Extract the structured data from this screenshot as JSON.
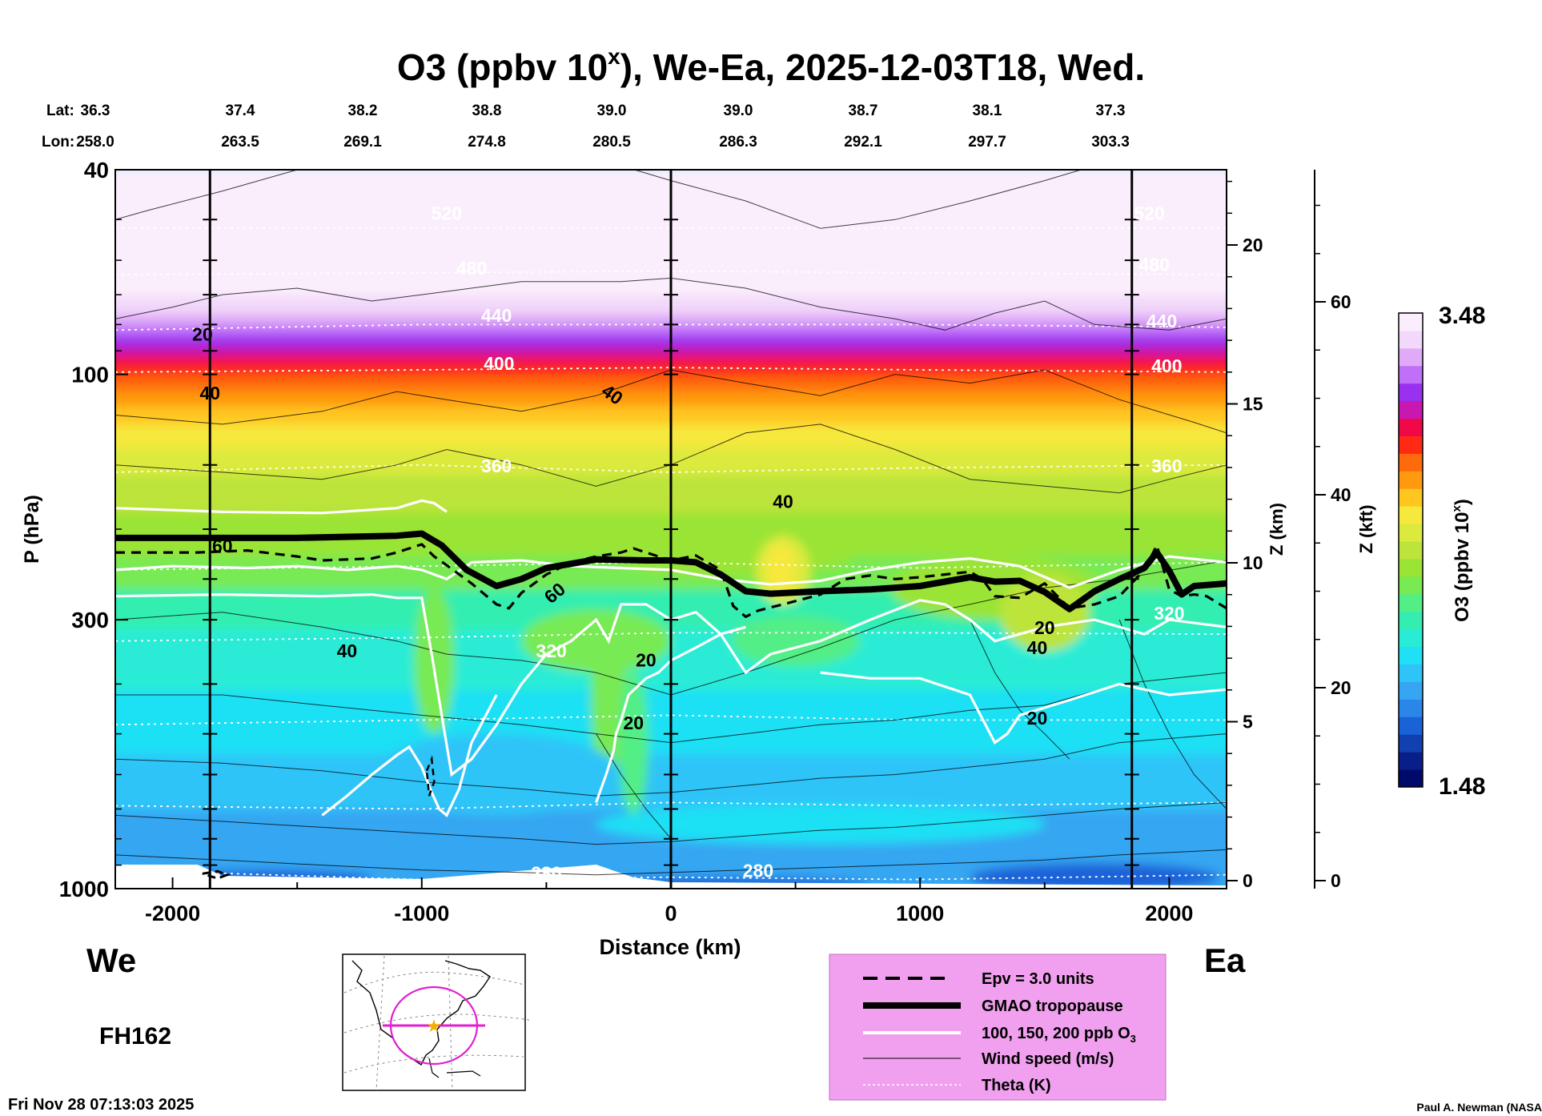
{
  "chart_data": {
    "type": "heatmap",
    "title_prefix": "O3 (ppbv 10",
    "title_sup": "x",
    "title_suffix": "), We-Ea, 2025-12-03T18, Wed.",
    "lat_label": "Lat:",
    "lon_label": "Lon:",
    "lat_values": [
      "36.3",
      "37.4",
      "38.2",
      "38.8",
      "39.0",
      "39.0",
      "38.7",
      "38.1",
      "37.3"
    ],
    "lon_values": [
      "258.0",
      "263.5",
      "269.1",
      "274.8",
      "280.5",
      "286.3",
      "292.1",
      "297.7",
      "303.3"
    ],
    "xlabel": "Distance (km)",
    "ylabel": "P (hPa)",
    "xlim": [
      -2230,
      2230
    ],
    "ylim": [
      1000,
      40
    ],
    "x_ticks": [
      -2000,
      -1000,
      0,
      1000,
      2000
    ],
    "x_tick_labels": [
      "-2000",
      "-1000",
      "0",
      "1000",
      "2000"
    ],
    "y_ticks": [
      40,
      100,
      300,
      1000
    ],
    "y_tick_labels": [
      "40",
      "100",
      "300",
      "1000"
    ],
    "z_km_label": "Z (km)",
    "z_km_ticks": [
      0,
      5,
      10,
      15,
      20
    ],
    "z_km_tick_labels": [
      "0",
      "5",
      "10",
      "15",
      "20"
    ],
    "z_kft_label": "Z (kft)",
    "z_kft_ticks": [
      0,
      20,
      40,
      60
    ],
    "z_kft_tick_labels": [
      "0",
      "20",
      "40",
      "60"
    ],
    "vertical_markers_km": [
      -1850,
      0,
      1850
    ],
    "colorbar_label_prefix": "O3 (ppbv 10",
    "colorbar_label_sup": "x",
    "colorbar_label_suffix": ")",
    "colorbar_max": "3.48",
    "colorbar_min": "1.48",
    "colors": [
      "#000a6a",
      "#0a1e8a",
      "#1140b0",
      "#1a62d8",
      "#2b86ea",
      "#36a6f2",
      "#2ec4f8",
      "#1fe0f4",
      "#29ecd6",
      "#33eeb0",
      "#52ee86",
      "#78ea52",
      "#9ae436",
      "#bce43a",
      "#dcea3e",
      "#f6e83c",
      "#ffc620",
      "#ff9a10",
      "#ff6a0c",
      "#ff2a14",
      "#f00848",
      "#c818b0",
      "#9a30f0",
      "#c070f8",
      "#e0aaf8",
      "#f2d8fa",
      "#fbeefc"
    ],
    "contour_labels_ozone": [
      "20",
      "40",
      "60",
      "40",
      "60",
      "40",
      "20",
      "40",
      "20",
      "40",
      "20",
      "20"
    ],
    "contour_labels_theta": [
      "520",
      "480",
      "440",
      "400",
      "360",
      "320",
      "280",
      "280",
      "520",
      "480",
      "440",
      "400",
      "360",
      "320"
    ],
    "tropopause": {
      "x": [
        -2230,
        -1500,
        -1100,
        -1000,
        -920,
        -820,
        -700,
        -600,
        -500,
        -300,
        -100,
        0,
        100,
        200,
        300,
        400,
        600,
        800,
        1000,
        1200,
        1300,
        1400,
        1500,
        1600,
        1700,
        1800,
        1900,
        1950,
        2000,
        2050,
        2100,
        2230
      ],
      "p": [
        208,
        208,
        206,
        204,
        215,
        240,
        258,
        250,
        238,
        229,
        230,
        230,
        232,
        245,
        264,
        267,
        264,
        262,
        258,
        248,
        253,
        252,
        265,
        286,
        264,
        250,
        238,
        222,
        241,
        268,
        258,
        255
      ]
    },
    "epv": {
      "x": [
        -2230,
        -1900,
        -1700,
        -1500,
        -1400,
        -1200,
        -1100,
        -1000,
        -950,
        -900,
        -800,
        -700,
        -650,
        -600,
        -500,
        -400,
        -300,
        -200,
        -150,
        -100,
        0,
        100,
        200,
        250,
        300,
        350,
        450,
        600,
        700,
        800,
        900,
        1000,
        1100,
        1200,
        1250,
        1300,
        1400,
        1500,
        1600,
        1700,
        1800,
        1900,
        1950,
        2000,
        2050,
        2100,
        2150,
        2230
      ],
      "p": [
        222,
        222,
        220,
        226,
        230,
        228,
        222,
        214,
        226,
        235,
        255,
        280,
        285,
        266,
        245,
        232,
        226,
        222,
        218,
        222,
        230,
        225,
        240,
        282,
        296,
        288,
        280,
        268,
        250,
        246,
        250,
        248,
        245,
        242,
        250,
        270,
        272,
        255,
        285,
        280,
        270,
        240,
        215,
        262,
        270,
        268,
        270,
        285
      ]
    },
    "legend": {
      "epv": "Epv = 3.0 units",
      "tropopause": "GMAO tropopause",
      "ozone_contours": "100, 150, 200 ppb O",
      "ozone_sub": "3",
      "wind": "Wind speed (m/s)",
      "theta": "Theta (K)"
    },
    "direction_west": "We",
    "direction_east": "Ea",
    "forecast_hour": "FH162",
    "timestamp": "Fri Nov 28 07:13:03 2025",
    "credit": "Paul A. Newman (NASA"
  }
}
